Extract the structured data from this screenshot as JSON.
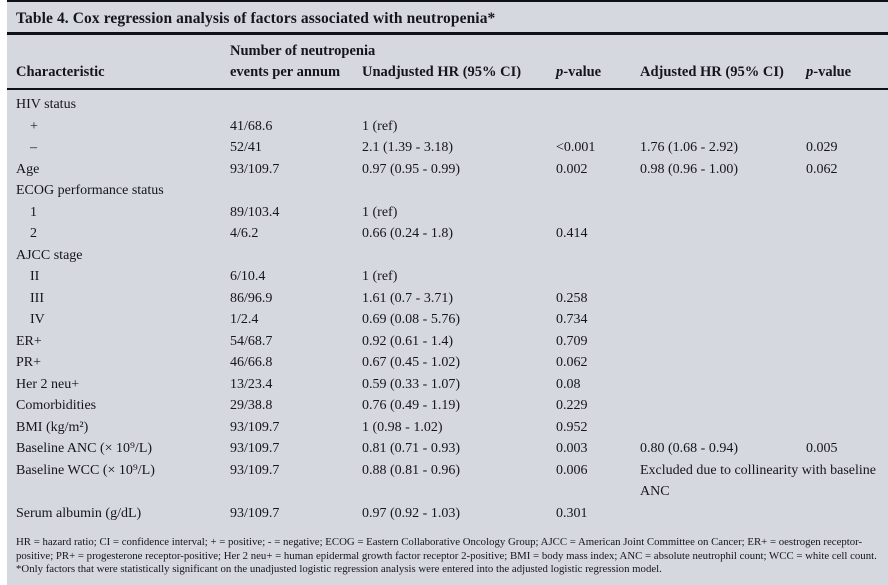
{
  "table": {
    "title": "Table 4. Cox regression analysis of factors associated with neutropenia*",
    "columns": {
      "characteristic": "Characteristic",
      "events": "Number of neutropenia events per annum",
      "unadjusted": "Unadjusted HR (95% CI)",
      "p1": "p-value",
      "adjusted": "Adjusted HR (95% CI)",
      "p2": "p-value"
    },
    "rows": [
      {
        "label": "HIV status",
        "indent": 0,
        "events": "",
        "uhr": "",
        "p1": "",
        "ahr": "",
        "p2": "",
        "merge": false
      },
      {
        "label": "+",
        "indent": 1,
        "events": "41/68.6",
        "uhr": "1 (ref)",
        "p1": "",
        "ahr": "",
        "p2": "",
        "merge": false
      },
      {
        "label": "–",
        "indent": 1,
        "events": "52/41",
        "uhr": "2.1 (1.39 - 3.18)",
        "p1": "<0.001",
        "ahr": "1.76 (1.06 - 2.92)",
        "p2": "0.029",
        "merge": false
      },
      {
        "label": "Age",
        "indent": 0,
        "events": "93/109.7",
        "uhr": "0.97 (0.95 - 0.99)",
        "p1": "0.002",
        "ahr": "0.98 (0.96 - 1.00)",
        "p2": "0.062",
        "merge": false
      },
      {
        "label": "ECOG performance status",
        "indent": 0,
        "events": "",
        "uhr": "",
        "p1": "",
        "ahr": "",
        "p2": "",
        "merge": false
      },
      {
        "label": "1",
        "indent": 1,
        "events": "89/103.4",
        "uhr": "1 (ref)",
        "p1": "",
        "ahr": "",
        "p2": "",
        "merge": false
      },
      {
        "label": "2",
        "indent": 1,
        "events": "4/6.2",
        "uhr": "0.66 (0.24 - 1.8)",
        "p1": "0.414",
        "ahr": "",
        "p2": "",
        "merge": false
      },
      {
        "label": "AJCC stage",
        "indent": 0,
        "events": "",
        "uhr": "",
        "p1": "",
        "ahr": "",
        "p2": "",
        "merge": false
      },
      {
        "label": "II",
        "indent": 1,
        "events": "6/10.4",
        "uhr": "1 (ref)",
        "p1": "",
        "ahr": "",
        "p2": "",
        "merge": false
      },
      {
        "label": "III",
        "indent": 1,
        "events": "86/96.9",
        "uhr": "1.61 (0.7 - 3.71)",
        "p1": "0.258",
        "ahr": "",
        "p2": "",
        "merge": false
      },
      {
        "label": "IV",
        "indent": 1,
        "events": "1/2.4",
        "uhr": "0.69 (0.08 - 5.76)",
        "p1": "0.734",
        "ahr": "",
        "p2": "",
        "merge": false
      },
      {
        "label": "ER+",
        "indent": 0,
        "events": "54/68.7",
        "uhr": "0.92 (0.61 - 1.4)",
        "p1": "0.709",
        "ahr": "",
        "p2": "",
        "merge": false
      },
      {
        "label": "PR+",
        "indent": 0,
        "events": "46/66.8",
        "uhr": "0.67 (0.45 - 1.02)",
        "p1": "0.062",
        "ahr": "",
        "p2": "",
        "merge": false
      },
      {
        "label": "Her 2 neu+",
        "indent": 0,
        "events": "13/23.4",
        "uhr": "0.59 (0.33 - 1.07)",
        "p1": "0.08",
        "ahr": "",
        "p2": "",
        "merge": false
      },
      {
        "label": "Comorbidities",
        "indent": 0,
        "events": "29/38.8",
        "uhr": "0.76 (0.49 - 1.19)",
        "p1": "0.229",
        "ahr": "",
        "p2": "",
        "merge": false
      },
      {
        "label": "BMI (kg/m²)",
        "indent": 0,
        "events": "93/109.7",
        "uhr": "1 (0.98 - 1.02)",
        "p1": "0.952",
        "ahr": "",
        "p2": "",
        "merge": false
      },
      {
        "label": "Baseline ANC (× 10⁹/L)",
        "indent": 0,
        "events": "93/109.7",
        "uhr": "0.81 (0.71 - 0.93)",
        "p1": "0.003",
        "ahr": "0.80 (0.68 - 0.94)",
        "p2": "0.005",
        "merge": false
      },
      {
        "label": "Baseline WCC (× 10⁹/L)",
        "indent": 0,
        "events": "93/109.7",
        "uhr": "0.88 (0.81 - 0.96)",
        "p1": "0.006",
        "ahr": "Excluded due to collinearity with baseline ANC",
        "p2": "",
        "merge": true
      },
      {
        "label": "Serum albumin (g/dL)",
        "indent": 0,
        "events": "93/109.7",
        "uhr": "0.97 (0.92 - 1.03)",
        "p1": "0.301",
        "ahr": "",
        "p2": "",
        "merge": false
      }
    ],
    "footnotes": {
      "abbreviations": "HR = hazard ratio; CI = confidence interval; + = positive; - = negative; ECOG = Eastern Collaborative Oncology Group; AJCC = American Joint Committee on Cancer; ER+ = oestrogen receptor-positive; PR+ = progesterone receptor-positive; Her 2 neu+ = human epidermal growth factor receptor 2-positive; BMI = body mass index; ANC = absolute neutrophil count; WCC = white cell count.",
      "note": "*Only factors that were statistically significant on the unadjusted logistic regression analysis were entered into the adjusted logistic regression model."
    }
  },
  "colors": {
    "panel_bg": "#d6d8df",
    "text": "#15151e",
    "rule": "#101018"
  }
}
